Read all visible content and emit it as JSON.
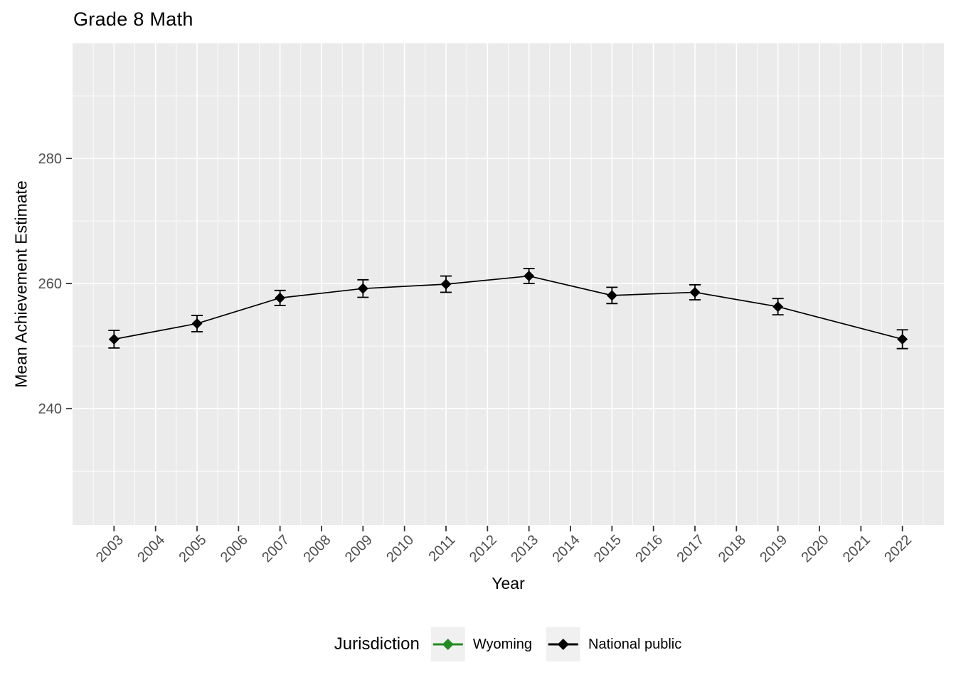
{
  "chart_data": {
    "type": "line",
    "title": "Grade 8 Math",
    "xlabel": "Year",
    "ylabel": "Mean Achievement Estimate",
    "legend_title": "Jurisdiction",
    "legend_position": "bottom",
    "grid": true,
    "xlim": [
      2002,
      2023
    ],
    "ylim": [
      221.4,
      298.4
    ],
    "x_ticks": [
      2003,
      2004,
      2005,
      2006,
      2007,
      2008,
      2009,
      2010,
      2011,
      2012,
      2013,
      2014,
      2015,
      2016,
      2017,
      2018,
      2019,
      2020,
      2021,
      2022
    ],
    "y_ticks": [
      240,
      260,
      280
    ],
    "y_minor_ticks": [
      230,
      250,
      270,
      290
    ],
    "series": [
      {
        "name": "Wyoming",
        "color": "#228B22",
        "marker": "diamond",
        "points": []
      },
      {
        "name": "National public",
        "color": "#000000",
        "marker": "diamond",
        "points": [
          {
            "x": 2003,
            "y": 251.1,
            "err": 1.4
          },
          {
            "x": 2005,
            "y": 253.6,
            "err": 1.3
          },
          {
            "x": 2007,
            "y": 257.7,
            "err": 1.2
          },
          {
            "x": 2009,
            "y": 259.2,
            "err": 1.4
          },
          {
            "x": 2011,
            "y": 259.9,
            "err": 1.3
          },
          {
            "x": 2013,
            "y": 261.2,
            "err": 1.2
          },
          {
            "x": 2015,
            "y": 258.1,
            "err": 1.3
          },
          {
            "x": 2017,
            "y": 258.6,
            "err": 1.2
          },
          {
            "x": 2019,
            "y": 256.3,
            "err": 1.3
          },
          {
            "x": 2022,
            "y": 251.1,
            "err": 1.5
          }
        ]
      }
    ]
  },
  "style": {
    "panel_bg": "#EBEBEB",
    "grid_color": "#FFFFFF",
    "tick_mark_color": "#333333",
    "tick_label_color": "#4D4D4D",
    "legend_key_bg": "#F0F0F0"
  }
}
